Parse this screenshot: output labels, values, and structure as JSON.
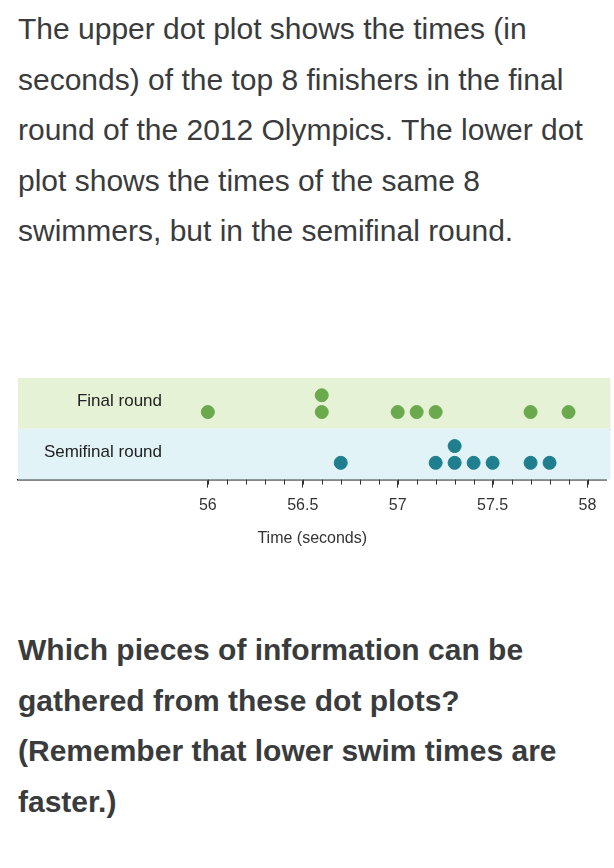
{
  "header": {
    "text": "The upper dot plot shows the times (in seconds) of the top 8 finishers in the final round of the 2012 Olympics. The lower dot plot shows the times of the same 8 swimmers, but in the semifinal round."
  },
  "chart_data": {
    "type": "dot",
    "xlabel": "Time (seconds)",
    "xlim": [
      55,
      58.1
    ],
    "xticks": [
      56,
      56.5,
      57,
      57.5,
      58
    ],
    "grid": false,
    "series": [
      {
        "name": "Final round",
        "color": "#6aaa4c",
        "values": [
          56.0,
          56.6,
          56.6,
          57.0,
          57.1,
          57.2,
          57.7,
          57.9
        ]
      },
      {
        "name": "Semifinal round",
        "color": "#1f7f8e",
        "values": [
          56.7,
          57.2,
          57.3,
          57.3,
          57.4,
          57.5,
          57.7,
          57.8
        ]
      }
    ]
  },
  "question": {
    "text": "Which pieces of information can be gathered from these dot plots? (Remember that lower swim times are faster.)"
  }
}
